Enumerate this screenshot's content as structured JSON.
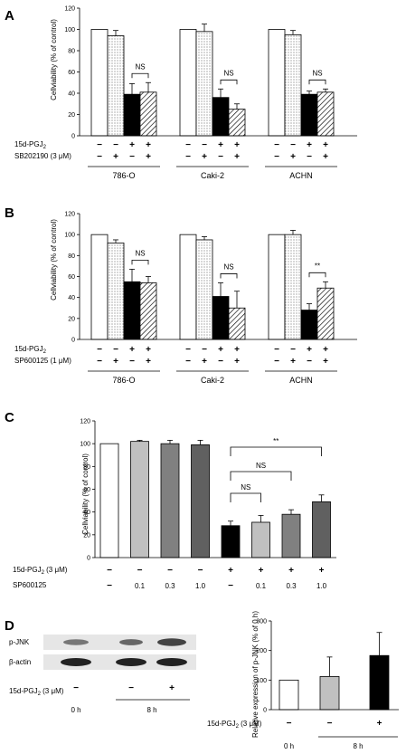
{
  "chart_data": [
    {
      "id": "A",
      "type": "bar",
      "panel_letter": "A",
      "ylabel": "Cellviability (% of control)",
      "ylim": [
        0,
        120
      ],
      "yticks": [
        0,
        20,
        40,
        60,
        80,
        100,
        120
      ],
      "groups": [
        "786-O",
        "Caki-2",
        "ACHN"
      ],
      "bar_styles": [
        "white",
        "dotted",
        "black",
        "hatched"
      ],
      "values": [
        [
          100,
          94,
          39,
          41
        ],
        [
          100,
          98,
          36,
          25
        ],
        [
          100,
          95,
          39,
          41
        ]
      ],
      "errors": [
        [
          0,
          5,
          10,
          9
        ],
        [
          0,
          7,
          8,
          5
        ],
        [
          0,
          4,
          3,
          3
        ]
      ],
      "rows": [
        {
          "label": "15d-PGJ₂",
          "signs": [
            "−",
            "−",
            "+",
            "+"
          ]
        },
        {
          "label": "SB202190 (3 μM)",
          "signs": [
            "−",
            "+",
            "−",
            "+"
          ]
        }
      ],
      "annotations": [
        {
          "group": 0,
          "from": 2,
          "to": 3,
          "text": "NS"
        },
        {
          "group": 1,
          "from": 2,
          "to": 3,
          "text": "NS"
        },
        {
          "group": 2,
          "from": 2,
          "to": 3,
          "text": "NS"
        }
      ]
    },
    {
      "id": "B",
      "type": "bar",
      "panel_letter": "B",
      "ylabel": "Cellviability (% of control)",
      "ylim": [
        0,
        120
      ],
      "yticks": [
        0,
        20,
        40,
        60,
        80,
        100,
        120
      ],
      "groups": [
        "786-O",
        "Caki-2",
        "ACHN"
      ],
      "bar_styles": [
        "white",
        "dotted",
        "black",
        "hatched"
      ],
      "values": [
        [
          100,
          92,
          55,
          54
        ],
        [
          100,
          95,
          41,
          30
        ],
        [
          100,
          100,
          28,
          49
        ]
      ],
      "errors": [
        [
          0,
          3,
          12,
          6
        ],
        [
          0,
          3,
          13,
          16
        ],
        [
          0,
          4,
          6,
          6
        ]
      ],
      "rows": [
        {
          "label": "15d-PGJ₂",
          "signs": [
            "−",
            "−",
            "+",
            "+"
          ]
        },
        {
          "label": "SP600125 (1 μM)",
          "signs": [
            "−",
            "+",
            "−",
            "+"
          ]
        }
      ],
      "annotations": [
        {
          "group": 0,
          "from": 2,
          "to": 3,
          "text": "NS"
        },
        {
          "group": 1,
          "from": 2,
          "to": 3,
          "text": "NS"
        },
        {
          "group": 2,
          "from": 2,
          "to": 3,
          "text": "**"
        }
      ]
    },
    {
      "id": "C",
      "type": "bar",
      "panel_letter": "C",
      "ylabel": "Cellviability (% of control)",
      "ylim": [
        0,
        120
      ],
      "yticks": [
        0,
        20,
        40,
        60,
        80,
        100,
        120
      ],
      "values": [
        100,
        102,
        100,
        99,
        28,
        31,
        38,
        49
      ],
      "errors": [
        0,
        1,
        3,
        4,
        4,
        6,
        4,
        6
      ],
      "fills": [
        "#ffffff",
        "#c0c0c0",
        "#808080",
        "#606060",
        "#000000",
        "#c0c0c0",
        "#808080",
        "#606060"
      ],
      "rows": [
        {
          "label": "15d-PGJ₂ (3 μM)",
          "signs": [
            "−",
            "−",
            "−",
            "−",
            "+",
            "+",
            "+",
            "+"
          ]
        },
        {
          "label": "SP600125",
          "signs": [
            "−",
            "0.1",
            "0.3",
            "1.0",
            "−",
            "0.1",
            "0.3",
            "1.0"
          ]
        }
      ],
      "annotations": [
        {
          "from": 4,
          "to": 5,
          "text": "NS"
        },
        {
          "from": 4,
          "to": 6,
          "text": "NS"
        },
        {
          "from": 4,
          "to": 7,
          "text": "**"
        }
      ]
    },
    {
      "id": "D",
      "type": "bar",
      "panel_letter": "D",
      "ylabel": "Relative expression of p-JNK (% of 0 h)",
      "ylim": [
        0,
        300
      ],
      "yticks": [
        0,
        100,
        200,
        300
      ],
      "values": [
        100,
        112,
        183
      ],
      "errors": [
        0,
        66,
        78
      ],
      "fills": [
        "#ffffff",
        "#c0c0c0",
        "#000000"
      ],
      "rows": [
        {
          "label": "15d-PGJ₂ (3 μM)",
          "signs": [
            "−",
            "−",
            "+"
          ]
        }
      ],
      "time_labels": [
        "0 h",
        "8 h"
      ]
    }
  ],
  "blot": {
    "bands": [
      "p-JNK",
      "β-actin"
    ],
    "row_label": "15d-PGJ₂ (3 μM)",
    "signs": [
      "−",
      "−",
      "+"
    ],
    "time_labels": [
      "0 h",
      "8 h"
    ]
  }
}
